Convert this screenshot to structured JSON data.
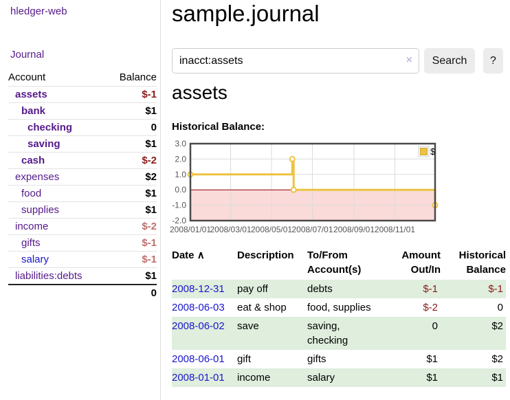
{
  "app": {
    "title": "hledger-web"
  },
  "sidebar": {
    "journal_label": "Journal",
    "accounts": {
      "headers": {
        "account": "Account",
        "balance": "Balance"
      },
      "rows": [
        {
          "name": "assets",
          "balance": "$-1"
        },
        {
          "name": "bank",
          "balance": "$1"
        },
        {
          "name": "checking",
          "balance": "0"
        },
        {
          "name": "saving",
          "balance": "$1"
        },
        {
          "name": "cash",
          "balance": "$-2"
        },
        {
          "name": "expenses",
          "balance": "$2"
        },
        {
          "name": "food",
          "balance": "$1"
        },
        {
          "name": "supplies",
          "balance": "$1"
        },
        {
          "name": "income",
          "balance": "$-2"
        },
        {
          "name": "gifts",
          "balance": "$-1"
        },
        {
          "name": "salary",
          "balance": "$-1"
        },
        {
          "name": "liabilities:debts",
          "balance": "$1"
        }
      ],
      "total": "0"
    }
  },
  "main": {
    "title": "sample.journal",
    "search": {
      "value": "inacct:assets",
      "clear_icon": "×",
      "search_label": "Search",
      "help_label": "?"
    },
    "account_heading": "assets",
    "chart_heading": "Historical Balance:"
  },
  "chart_data": {
    "type": "line",
    "step": true,
    "title": "Historical Balance:",
    "legend": {
      "label": "$",
      "position": "top-right"
    },
    "x_range": [
      0,
      365
    ],
    "y_range": [
      -2,
      3
    ],
    "x_ticks": {
      "values": [
        0,
        60,
        121,
        182,
        244,
        305
      ],
      "labels": [
        "2008/01/01",
        "2008/03/01",
        "2008/05/01",
        "2008/07/01",
        "2008/09/01",
        "2008/11/01"
      ]
    },
    "y_ticks": {
      "values": [
        3,
        2,
        1,
        0,
        -1,
        -2
      ],
      "labels": [
        "3.0",
        "2.0",
        "1.0",
        "0.0",
        "-1.0",
        "-2.0"
      ]
    },
    "series": [
      {
        "name": "$",
        "color": "#edc240",
        "point_dates": [
          "2008-01-01",
          "2008-06-01",
          "2008-06-03",
          "2008-12-31"
        ],
        "points_x": [
          0,
          152,
          154,
          365
        ],
        "points_y": [
          1,
          2,
          0,
          -1
        ]
      }
    ],
    "negative_region": {
      "from": -2,
      "to": 0,
      "fill": "#fbdada",
      "zero_line_color": "#8b0000"
    }
  },
  "register": {
    "headers": {
      "date": "Date",
      "sort_icon": "∧",
      "description": "Description",
      "accounts": "To/From\nAccount(s)",
      "amount": "Amount\nOut/In",
      "balance": "Historical\nBalance"
    },
    "rows": [
      {
        "date": "2008-12-31",
        "description": "pay off",
        "accounts": "debts",
        "amount": "$-1",
        "balance": "$-1"
      },
      {
        "date": "2008-06-03",
        "description": "eat & shop",
        "accounts": "food, supplies",
        "amount": "$-2",
        "balance": "0"
      },
      {
        "date": "2008-06-02",
        "description": "save",
        "accounts": "saving,\nchecking",
        "amount": "0",
        "balance": "$2"
      },
      {
        "date": "2008-06-01",
        "description": "gift",
        "accounts": "gifts",
        "amount": "$1",
        "balance": "$2"
      },
      {
        "date": "2008-01-01",
        "description": "income",
        "accounts": "salary",
        "amount": "$1",
        "balance": "$1"
      }
    ]
  },
  "colors": {
    "link_purple": "#551a8b",
    "link_blue": "#1a16cc",
    "negative_strong": "#8b1a1a",
    "negative_soft": "#bd6e6e",
    "row_shade_green": "#dfeedd",
    "chart_line": "#edc240",
    "chart_marker_fill": "#ffffff",
    "chart_negative_region": "#fbdada",
    "chart_zero_line": "#8b0000",
    "chart_border": "#4a4a4a",
    "grid": "#dcdcdc"
  }
}
